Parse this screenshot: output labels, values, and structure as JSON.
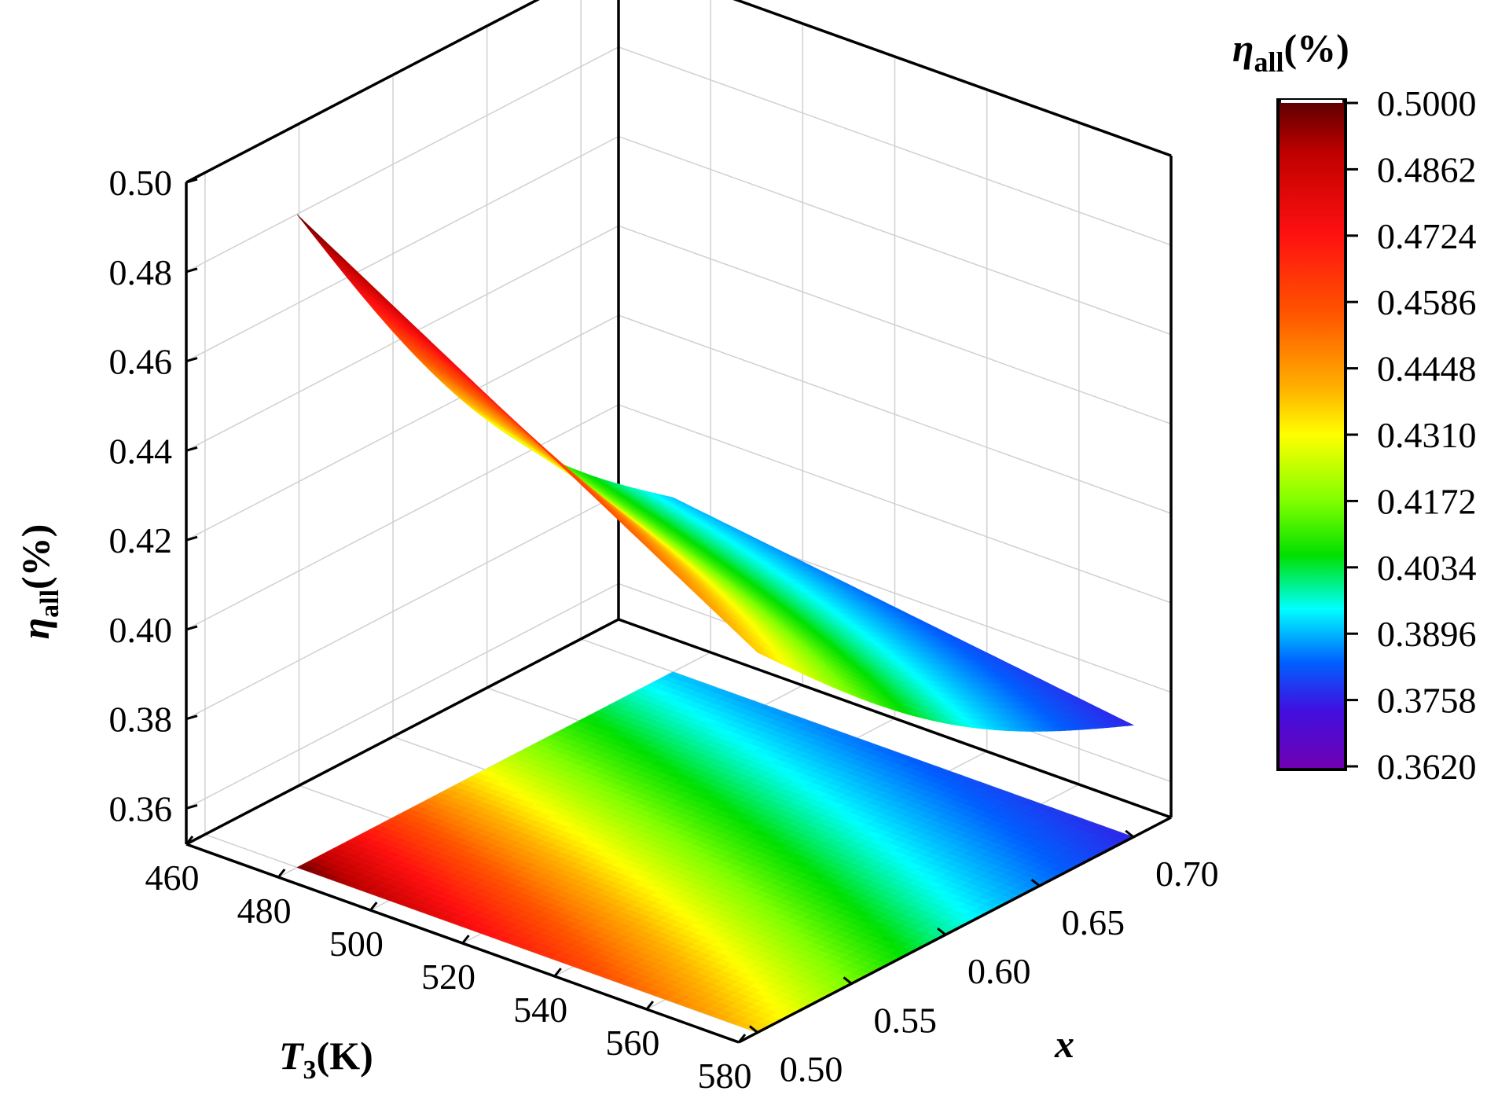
{
  "chart_data": {
    "type": "surface",
    "description_of_axes": "3D surface with projected contour on the floor",
    "x_axis": {
      "label_main": "T",
      "label_sub": "3",
      "label_unit": "(K)",
      "ticks": [
        "460",
        "480",
        "500",
        "520",
        "540",
        "560",
        "580"
      ],
      "range": [
        460,
        580
      ]
    },
    "y_axis": {
      "label_main": "x",
      "ticks": [
        "0.50",
        "0.55",
        "0.60",
        "0.65",
        "0.70"
      ],
      "range": [
        0.49,
        0.72
      ]
    },
    "z_axis": {
      "label_main": "η",
      "label_sub": "all",
      "label_unit": "(%)",
      "ticks": [
        "0.36",
        "0.38",
        "0.40",
        "0.42",
        "0.44",
        "0.46",
        "0.48",
        "0.50"
      ],
      "range": [
        0.352,
        0.5
      ]
    },
    "colorbar": {
      "title_main": "η",
      "title_sub": "all",
      "title_unit": "(%)",
      "ticks": [
        "0.5000",
        "0.4862",
        "0.4724",
        "0.4586",
        "0.4448",
        "0.4310",
        "0.4172",
        "0.4034",
        "0.3896",
        "0.3758",
        "0.3620"
      ],
      "min": 0.362,
      "max": 0.5
    },
    "surface_domain": {
      "T3": [
        480,
        580
      ],
      "x": [
        0.5,
        0.7
      ]
    },
    "surface_corners": [
      {
        "T3": 480,
        "x": 0.5,
        "eta": 0.498
      },
      {
        "T3": 580,
        "x": 0.5,
        "eta": 0.437
      },
      {
        "T3": 480,
        "x": 0.7,
        "eta": 0.391
      },
      {
        "T3": 580,
        "x": 0.7,
        "eta": 0.377
      }
    ]
  }
}
